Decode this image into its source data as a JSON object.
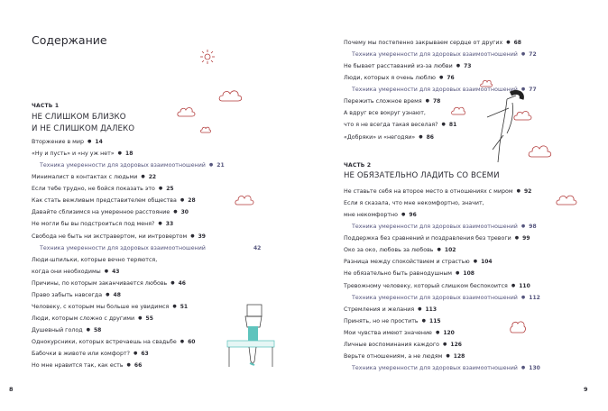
{
  "left_page": {
    "title": "Содержание",
    "part_label": "ЧАСТЬ 1",
    "part_title_lines": [
      "НЕ СЛИШКОМ БЛИЗКО",
      "И НЕ СЛИШКОМ ДАЛЕКО"
    ],
    "entries": [
      {
        "text": "Вторжение в мир",
        "page": "14"
      },
      {
        "text": "«Ну и пусть» и «ну уж нет»",
        "page": "18"
      },
      {
        "text": "Техника умеренности для здоровых взаимоотношений",
        "page": "21",
        "sub": true
      },
      {
        "text": "Минималист в контактах с людьми",
        "page": "22"
      },
      {
        "text": "Если тебе трудно, не бойся показать это",
        "page": "25"
      },
      {
        "text": "Как стать вежливым представителем общества",
        "page": "28"
      },
      {
        "text": "Давайте сблизимся на умеренное расстояние",
        "page": "30"
      },
      {
        "text": "Не могли бы вы подстроиться под меня?",
        "page": "33"
      },
      {
        "text": "Свобода не быть ни экстравертом, ни интровертом",
        "page": "39"
      },
      {
        "text": "Техника умеренности для здоровых взаимоотношений",
        "page": "42",
        "sub": true,
        "wide": true
      },
      {
        "text": "Люди-шпильки, которые вечно теряются,",
        "page": ""
      },
      {
        "text": "когда они необходимы",
        "page": "43"
      },
      {
        "text": "Причины, по которым заканчивается любовь",
        "page": "46"
      },
      {
        "text": "Право забыть навсегда",
        "page": "48"
      },
      {
        "text": "Человеку, с которым мы больше не увидимся",
        "page": "51"
      },
      {
        "text": "Люди, которым сложно с другими",
        "page": "55"
      },
      {
        "text": "Душевный голод",
        "page": "58"
      },
      {
        "text": "Однокурсники, которых встречаешь на свадьбе",
        "page": "60"
      },
      {
        "text": "Бабочки в животе или комфорт?",
        "page": "63"
      },
      {
        "text": "Но мне нравится так, как есть",
        "page": "66"
      }
    ],
    "folio": "8"
  },
  "right_page": {
    "entries_top": [
      {
        "text": "Почему мы постепенно закрываем сердце от других",
        "page": "68"
      },
      {
        "text": "Техника умеренности для здоровых взаимоотношений",
        "page": "72",
        "sub": true
      },
      {
        "text": "Не бывает расставаний из-за любви",
        "page": "73"
      },
      {
        "text": "Люди, которых я очень люблю",
        "page": "76"
      },
      {
        "text": "Техника умеренности для здоровых взаимоотношений",
        "page": "77",
        "sub": true
      },
      {
        "text": "Пережить сложное время",
        "page": "78"
      },
      {
        "text": "А вдруг все вокруг узнают,",
        "page": ""
      },
      {
        "text": "что я не всегда такая веселая?",
        "page": "81"
      },
      {
        "text": "«Добряки» и «негодяи»",
        "page": "86"
      }
    ],
    "part_label": "ЧАСТЬ 2",
    "part_title_lines": [
      "НЕ ОБЯЗАТЕЛЬНО ЛАДИТЬ СО ВСЕМИ"
    ],
    "entries": [
      {
        "text": "Не ставьте себя на второе место в отношениях с миром",
        "page": "92"
      },
      {
        "text": "Если я сказала, что мне некомфортно, значит,",
        "page": ""
      },
      {
        "text": "мне некомфортно",
        "page": "96"
      },
      {
        "text": "Техника умеренности для здоровых взаимоотношений",
        "page": "98",
        "sub": true
      },
      {
        "text": "Поддержка без сравнений и поздравления без тревоги",
        "page": "99"
      },
      {
        "text": "Око за око, любовь за любовь",
        "page": "102"
      },
      {
        "text": "Разница между спокойствием и страстью",
        "page": "104"
      },
      {
        "text": "Не обязательно быть равнодушным",
        "page": "108"
      },
      {
        "text": "Тревожному человеку, который слишком беспокоится",
        "page": "110"
      },
      {
        "text": "Техника умеренности для здоровых взаимоотношений",
        "page": "112",
        "sub": true
      },
      {
        "text": "Стремления и желания",
        "page": "113"
      },
      {
        "text": "Принять, но не простить",
        "page": "115"
      },
      {
        "text": "Мои чувства имеют значение",
        "page": "120"
      },
      {
        "text": "Личные воспоминания каждого",
        "page": "126"
      },
      {
        "text": "Верьте отношениям, а не людям",
        "page": "128"
      },
      {
        "text": "Техника умеренности для здоровых взаимоотношений",
        "page": "130",
        "sub": true
      }
    ],
    "folio": "9"
  },
  "colors": {
    "text": "#2b2b33",
    "sub_entry": "#56567e",
    "cloud": "#b23a3a",
    "teal": "#5ec4bd"
  }
}
